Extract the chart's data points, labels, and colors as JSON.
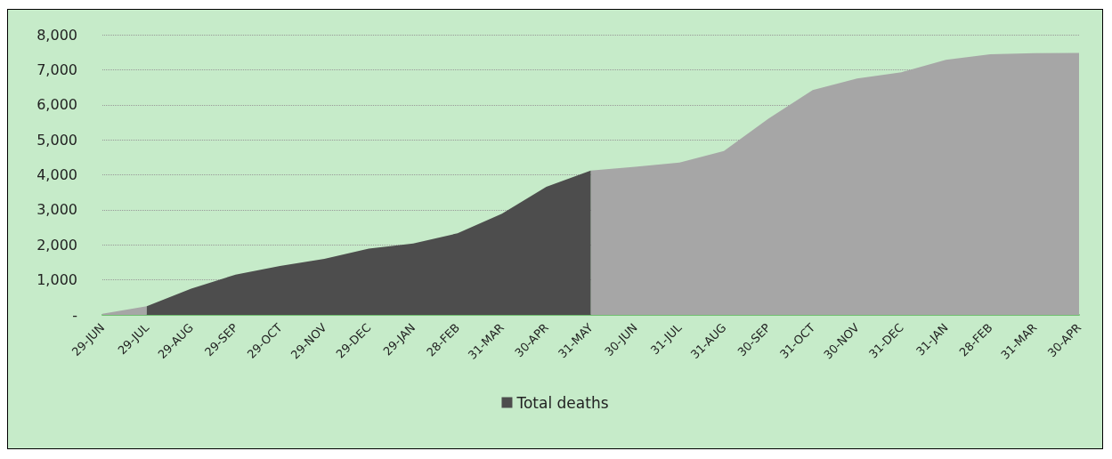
{
  "chart_data": {
    "type": "area",
    "categories": [
      "29-JUN",
      "29-JUL",
      "29-AUG",
      "29-SEP",
      "29-OCT",
      "29-NOV",
      "29-DEC",
      "29-JAN",
      "28-FEB",
      "31-MAR",
      "30-APR",
      "31-MAY",
      "30-JUN",
      "31-JUL",
      "31-AUG",
      "30-SEP",
      "31-OCT",
      "30-NOV",
      "31-DEC",
      "31-JAN",
      "28-FEB",
      "31-MAR",
      "30-APR"
    ],
    "series": [
      {
        "color": "#a6a6a6",
        "values": [
          30,
          250,
          null,
          null,
          null,
          null,
          null,
          null,
          null,
          null,
          null,
          4120,
          4230,
          4350,
          4680,
          5600,
          6420,
          6750,
          6930,
          7280,
          7440,
          7470,
          7480
        ]
      },
      {
        "name": "Total deaths",
        "color": "#4d4d4d",
        "values": [
          null,
          250,
          750,
          1150,
          1400,
          1600,
          1890,
          2040,
          2330,
          2890,
          3660,
          4120,
          null,
          null,
          null,
          null,
          null,
          null,
          null,
          null,
          null,
          null,
          null
        ]
      }
    ],
    "ylim": [
      0,
      8000
    ],
    "yticks": [
      {
        "value": 0,
        "label": "-"
      },
      {
        "value": 1000,
        "label": "1,000"
      },
      {
        "value": 2000,
        "label": "2,000"
      },
      {
        "value": 3000,
        "label": "3,000"
      },
      {
        "value": 4000,
        "label": "4,000"
      },
      {
        "value": 5000,
        "label": "5,000"
      },
      {
        "value": 6000,
        "label": "6,000"
      },
      {
        "value": 7000,
        "label": "7,000"
      },
      {
        "value": 8000,
        "label": "8,000"
      }
    ],
    "grid": "y",
    "legend": "bottom",
    "marker": "none"
  }
}
